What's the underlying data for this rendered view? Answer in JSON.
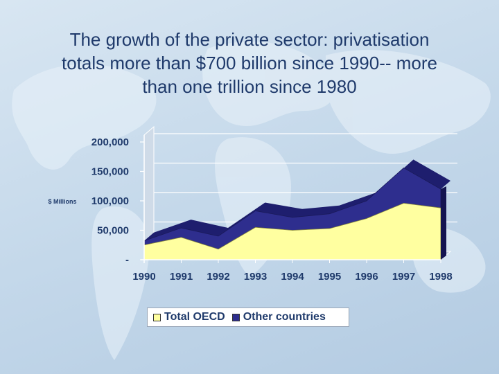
{
  "title": {
    "line1": "The growth of the private sector: privatisation",
    "line2": "totals more than $700 billion since 1990-- more",
    "line3": "than one trillion since 1980"
  },
  "chart_data": {
    "type": "area",
    "stacked": true,
    "categories": [
      "1990",
      "1991",
      "1992",
      "1993",
      "1994",
      "1995",
      "1996",
      "1997",
      "1998"
    ],
    "series": [
      {
        "name": "Total OECD",
        "color": "#ffffa0",
        "values": [
          25000,
          38000,
          18000,
          55000,
          50000,
          53000,
          70000,
          96000,
          88000
        ]
      },
      {
        "name": "Other countries",
        "color": "#2e2e8e",
        "values": [
          7000,
          16000,
          22000,
          28000,
          22000,
          25000,
          30000,
          60000,
          32000
        ]
      }
    ],
    "ylabel": "$ Millions",
    "ylim": [
      0,
      200000
    ],
    "y_ticks": [
      0,
      50000,
      100000,
      150000,
      200000
    ],
    "y_tick_labels": [
      "-",
      "50,000",
      "100,000",
      "150,000",
      "200,000"
    ],
    "legend_position": "bottom"
  }
}
